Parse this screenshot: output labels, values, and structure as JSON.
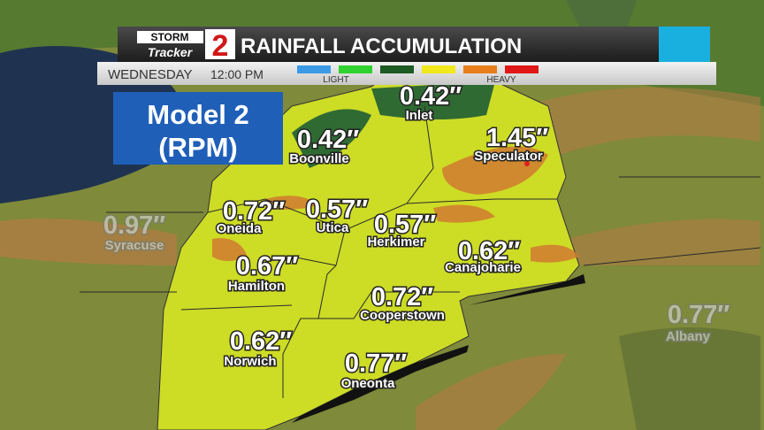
{
  "header": {
    "logo_top": "STORM",
    "logo_bottom": "Tracker",
    "logo_number": "2",
    "title": "RAINFALL ACCUMULATION",
    "day": "WEDNESDAY",
    "time": "12:00 PM",
    "legend_light": "LIGHT",
    "legend_heavy": "HEAVY"
  },
  "model": {
    "line1": "Model 2",
    "line2": "(RPM)"
  },
  "locations": [
    {
      "amount": "0.42″",
      "name": "Inlet"
    },
    {
      "amount": "0.42″",
      "name": "Boonville"
    },
    {
      "amount": "1.45″",
      "name": "Speculator"
    },
    {
      "amount": "0.72″",
      "name": "Oneida"
    },
    {
      "amount": "0.57″",
      "name": "Utica"
    },
    {
      "amount": "0.57″",
      "name": "Herkimer"
    },
    {
      "amount": "0.97″",
      "name": "Syracuse"
    },
    {
      "amount": "0.62″",
      "name": "Canajoharie"
    },
    {
      "amount": "0.67″",
      "name": "Hamilton"
    },
    {
      "amount": "0.72″",
      "name": "Cooperstown"
    },
    {
      "amount": "0.77″",
      "name": "Albany"
    },
    {
      "amount": "0.62″",
      "name": "Norwich"
    },
    {
      "amount": "0.77″",
      "name": "Oneonta"
    }
  ]
}
